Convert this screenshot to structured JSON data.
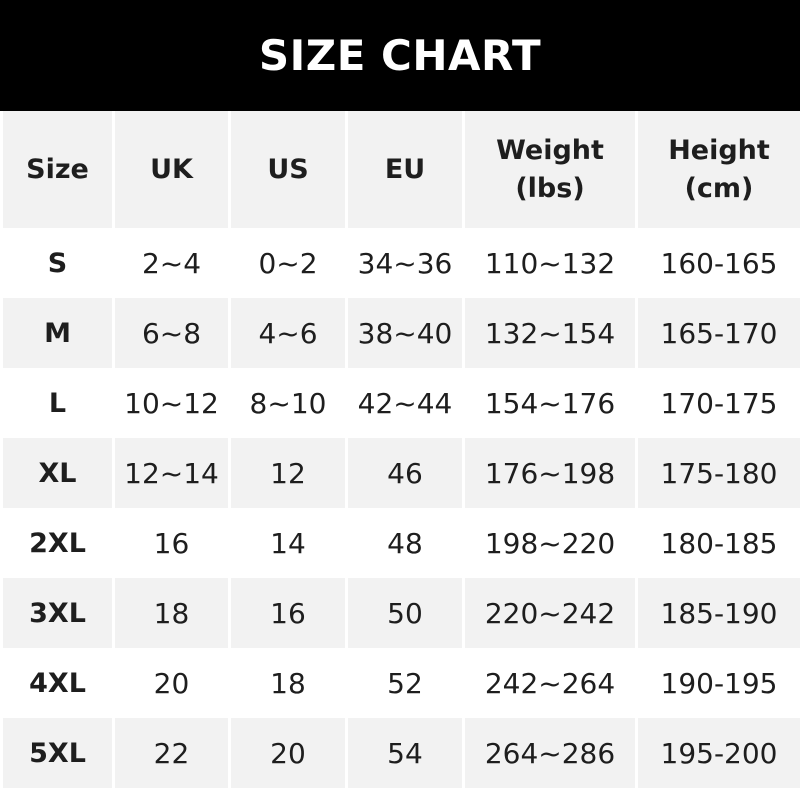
{
  "title": "SIZE CHART",
  "columns": [
    {
      "line1": "Size",
      "line2": ""
    },
    {
      "line1": "UK",
      "line2": ""
    },
    {
      "line1": "US",
      "line2": ""
    },
    {
      "line1": "EU",
      "line2": ""
    },
    {
      "line1": "Weight",
      "line2": "(lbs)"
    },
    {
      "line1": "Height",
      "line2": "(cm)"
    }
  ],
  "rows": [
    [
      "S",
      "2~4",
      "0~2",
      "34~36",
      "110~132",
      "160-165"
    ],
    [
      "M",
      "6~8",
      "4~6",
      "38~40",
      "132~154",
      "165-170"
    ],
    [
      "L",
      "10~12",
      "8~10",
      "42~44",
      "154~176",
      "170-175"
    ],
    [
      "XL",
      "12~14",
      "12",
      "46",
      "176~198",
      "175-180"
    ],
    [
      "2XL",
      "16",
      "14",
      "48",
      "198~220",
      "180-185"
    ],
    [
      "3XL",
      "18",
      "16",
      "50",
      "220~242",
      "185-190"
    ],
    [
      "4XL",
      "20",
      "18",
      "52",
      "242~264",
      "190-195"
    ],
    [
      "5XL",
      "22",
      "20",
      "54",
      "264~286",
      "195-200"
    ]
  ],
  "colors": {
    "banner": "#000000",
    "header_row": "#f2f2f2",
    "stripe": "#f2f2f2",
    "text": "#1e1e1e"
  }
}
